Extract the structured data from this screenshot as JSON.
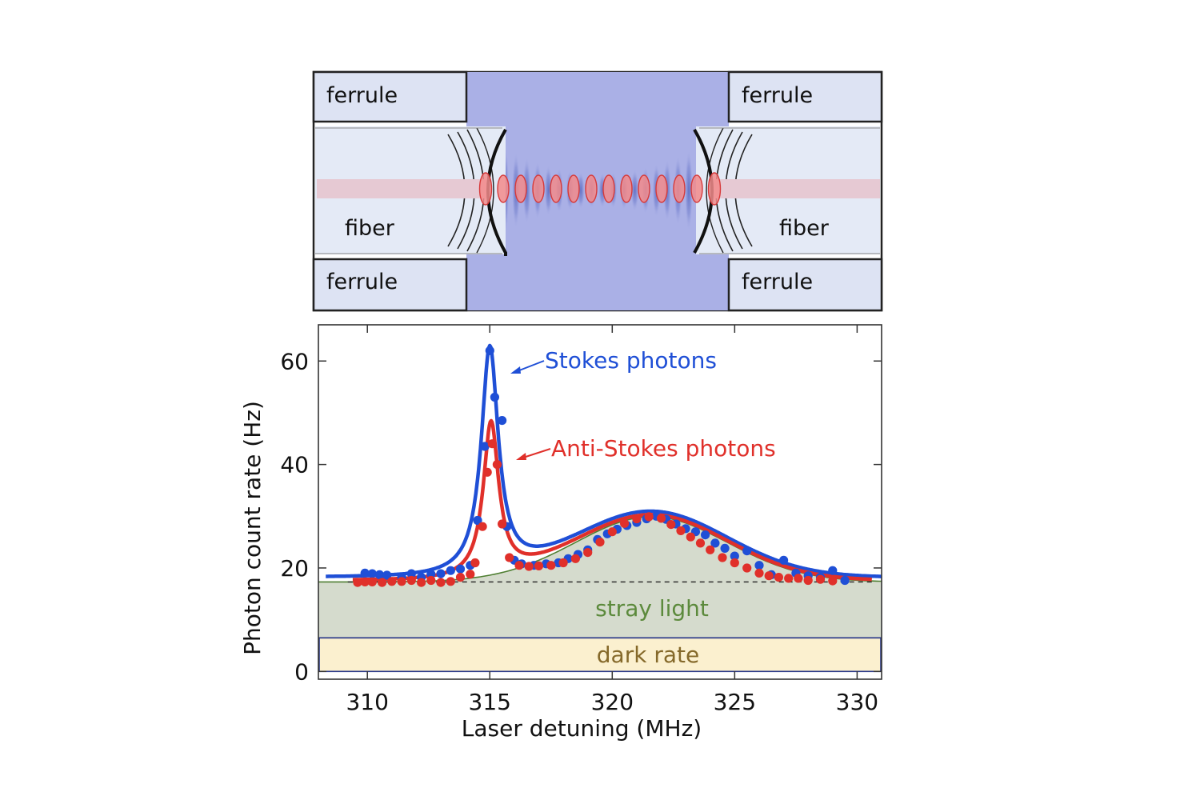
{
  "diagram": {
    "labels": {
      "ferrule_top_left": "ferrule",
      "ferrule_top_right": "ferrule",
      "ferrule_bottom_left": "ferrule",
      "ferrule_bottom_right": "ferrule",
      "fiber_left": "fiber",
      "fiber_right": "fiber"
    },
    "colors": {
      "cavity": "#aab0e6",
      "ferrule": "#dde3f3",
      "fiber": "#e4eaf6",
      "beam": "#e6c9d3",
      "antinode": "#f28b8b",
      "antinode_edge": "#d63a3a",
      "outline": "#222222"
    }
  },
  "chart_data": {
    "type": "scatter",
    "xlabel": "Laser detuning (MHz)",
    "ylabel": "Photon count rate (Hz)",
    "xlim": [
      308,
      331
    ],
    "ylim": [
      -1.5,
      67
    ],
    "xticks": [
      "310",
      "315",
      "320",
      "325",
      "330"
    ],
    "yticks": [
      "0",
      "20",
      "40",
      "60"
    ],
    "baseline_dashed": 17.3,
    "annotations": {
      "stokes": "Stokes photons",
      "anti_stokes": "Anti-Stokes photons",
      "stray": "stray light",
      "dark": "dark rate"
    },
    "regions": [
      {
        "name": "dark rate",
        "from": 0,
        "to": 6.5,
        "color": "#fbf0cf"
      },
      {
        "name": "stray light",
        "from": 6.5,
        "to": "background curve",
        "color": "#d5dbcd"
      }
    ],
    "colors": {
      "stokes": "#1f4fd6",
      "anti_stokes": "#e0302a",
      "stray": "#5c8a3c",
      "dark": "#85692a",
      "fit": "#4f7f32"
    },
    "series": [
      {
        "name": "Stokes photons",
        "x": [
          309.9,
          310.2,
          310.5,
          310.8,
          311.4,
          311.8,
          312.2,
          312.6,
          313.0,
          313.4,
          313.8,
          314.2,
          314.5,
          314.8,
          315.0,
          315.2,
          315.5,
          315.7,
          316.0,
          316.3,
          316.8,
          317.3,
          317.8,
          318.2,
          318.6,
          319.0,
          319.4,
          319.8,
          320.2,
          320.6,
          321.0,
          321.4,
          321.8,
          322.2,
          322.6,
          323.0,
          323.4,
          323.8,
          324.2,
          324.6,
          325.0,
          325.5,
          326.0,
          326.5,
          327.0,
          327.5,
          328.0,
          328.5,
          329.0,
          329.5
        ],
        "values": [
          19.0,
          18.9,
          18.7,
          18.6,
          18.2,
          18.9,
          18.2,
          18.8,
          18.9,
          19.5,
          19.8,
          20.5,
          29.2,
          43.5,
          62.0,
          53.0,
          48.5,
          28.0,
          21.5,
          20.8,
          20.5,
          20.8,
          21.0,
          21.8,
          22.6,
          23.5,
          25.5,
          26.6,
          27.5,
          28.2,
          28.8,
          29.5,
          30.0,
          29.4,
          28.5,
          27.6,
          27.0,
          26.4,
          24.8,
          23.8,
          22.3,
          23.3,
          20.5,
          18.7,
          21.5,
          19.0,
          18.5,
          18.2,
          19.5,
          17.6
        ]
      },
      {
        "name": "Anti-Stokes photons",
        "x": [
          309.6,
          309.9,
          310.2,
          310.6,
          311.0,
          311.4,
          311.8,
          312.2,
          312.6,
          313.0,
          313.4,
          313.8,
          314.2,
          314.4,
          314.7,
          314.9,
          315.1,
          315.3,
          315.5,
          315.8,
          316.2,
          316.6,
          317.0,
          317.5,
          318.0,
          318.5,
          319.0,
          319.5,
          320.0,
          320.5,
          321.0,
          321.5,
          322.0,
          322.4,
          322.8,
          323.2,
          323.6,
          324.0,
          324.5,
          325.0,
          325.5,
          326.0,
          326.4,
          326.8,
          327.2,
          327.6,
          328.0,
          328.5,
          329.0
        ],
        "values": [
          17.2,
          17.3,
          17.3,
          17.2,
          17.4,
          17.4,
          17.6,
          17.2,
          17.6,
          17.2,
          17.4,
          18.2,
          18.8,
          21.0,
          28.0,
          38.5,
          44.0,
          40.0,
          28.5,
          22.0,
          20.5,
          20.3,
          20.4,
          20.5,
          21.0,
          21.8,
          23.0,
          25.0,
          27.0,
          28.6,
          29.5,
          29.9,
          29.6,
          28.4,
          27.2,
          26.0,
          24.8,
          23.5,
          22.0,
          21.0,
          20.0,
          19.0,
          18.5,
          18.2,
          18.0,
          18.0,
          17.6,
          17.8,
          17.5
        ]
      }
    ]
  }
}
